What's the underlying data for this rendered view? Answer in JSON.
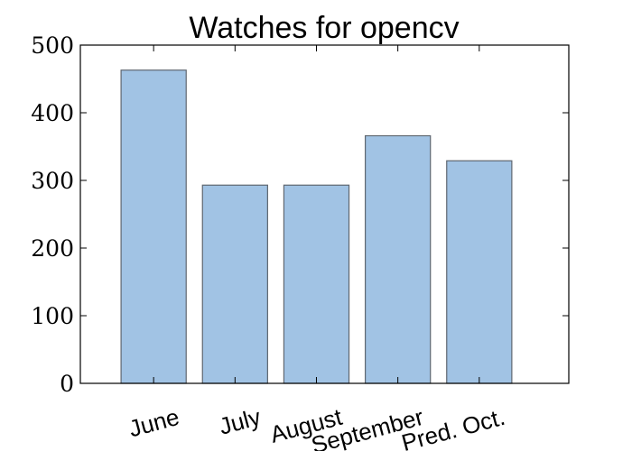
{
  "chart_data": {
    "type": "bar",
    "title": "Watches for opencv",
    "categories": [
      "June",
      "July",
      "August",
      "September",
      "Pred. Oct."
    ],
    "values": [
      463,
      293,
      293,
      366,
      329
    ],
    "xlabel": "",
    "ylabel": "",
    "ylim": [
      0,
      500
    ],
    "yticks": [
      0,
      100,
      200,
      300,
      400,
      500
    ],
    "yticklabels": [
      "0",
      "100",
      "200",
      "300",
      "400",
      "500"
    ],
    "grid": false,
    "bar_color": "#a1c3e4",
    "bar_edge_color": "#5f6770",
    "axis_color": "#000000"
  }
}
